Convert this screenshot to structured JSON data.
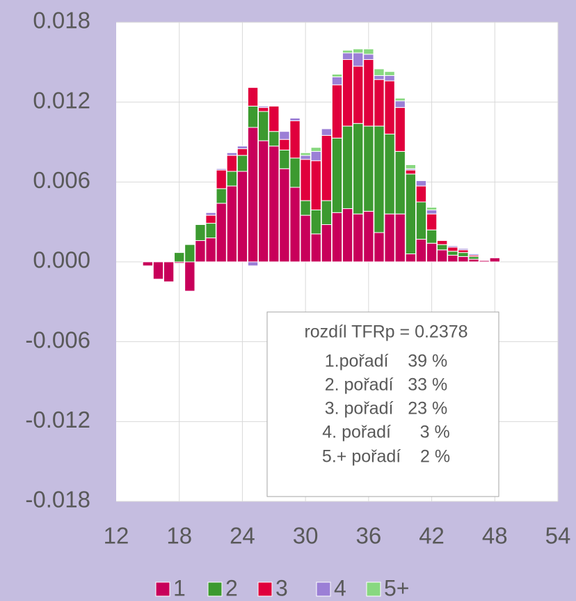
{
  "chart_data": {
    "type": "bar",
    "stacked": true,
    "x": [
      15,
      16,
      17,
      18,
      19,
      20,
      21,
      22,
      23,
      24,
      25,
      26,
      27,
      28,
      29,
      30,
      31,
      32,
      33,
      34,
      35,
      36,
      37,
      38,
      39,
      40,
      41,
      42,
      43,
      44,
      45,
      46,
      47,
      48
    ],
    "series": [
      {
        "name": "1",
        "color": "#c8005a",
        "values": [
          -0.0003,
          -0.0013,
          -0.0015,
          -0.0001,
          -0.0022,
          0.0016,
          0.0018,
          0.0044,
          0.0057,
          0.0068,
          0.0101,
          0.0091,
          0.0087,
          0.007,
          0.0056,
          0.0035,
          0.0021,
          0.0028,
          0.0037,
          0.004,
          0.0036,
          0.0038,
          0.0022,
          0.0036,
          0.0036,
          0.0006,
          0.0017,
          0.0014,
          0.0009,
          0.0005,
          0.0004,
          0.0002,
          0.0001,
          0.0003
        ]
      },
      {
        "name": "2",
        "color": "#3c9a30",
        "values": [
          0,
          0,
          0,
          0.0007,
          0.0013,
          0.0012,
          0.0011,
          0.0011,
          0.0011,
          0.0012,
          0.0016,
          0.0022,
          0.0011,
          0.0014,
          0.0022,
          0.0011,
          0.0018,
          0.0018,
          0.0056,
          0.0062,
          0.0068,
          0.0064,
          0.008,
          0.006,
          0.0047,
          0.006,
          0.0028,
          0.001,
          0.0004,
          0.0003,
          0.0003,
          0.0002,
          0,
          0
        ]
      },
      {
        "name": "3",
        "color": "#e0003c",
        "values": [
          0,
          0,
          0,
          0,
          0,
          0,
          0.0006,
          0.0014,
          0.0012,
          0.0005,
          0.0014,
          0.0003,
          0.0019,
          0.0008,
          0.0028,
          0.0031,
          0.0037,
          0.0049,
          0.004,
          0.005,
          0.0043,
          0.005,
          0.0035,
          0.004,
          0.0033,
          0.0003,
          0.0012,
          0.0012,
          0.0003,
          0.0003,
          0.0002,
          0.0001,
          0,
          0
        ]
      },
      {
        "name": "4",
        "color": "#9b7fd6",
        "values": [
          0,
          0,
          0,
          0,
          0,
          0,
          0.0002,
          0.0001,
          0.0002,
          0.0002,
          -0.0003,
          0.0001,
          0,
          0.0006,
          0.0002,
          0.0003,
          0.0007,
          0.0005,
          0.0006,
          0.0005,
          0.001,
          0.0004,
          0.0003,
          0.0004,
          0.0005,
          0.0001,
          0.0004,
          0.0003,
          0,
          0.0001,
          0.0001,
          0.0001,
          0,
          0
        ]
      },
      {
        "name": "5+",
        "color": "#88d880",
        "values": [
          0,
          0,
          0,
          0,
          0,
          0,
          0,
          0,
          0,
          0,
          0,
          0,
          0,
          0,
          0,
          0.0002,
          0.0003,
          0,
          0.0002,
          0.0002,
          0.0003,
          0.0004,
          0.0005,
          0.0003,
          0.0002,
          0.0003,
          0,
          0.0002,
          0,
          0,
          0,
          0,
          0,
          0
        ]
      }
    ],
    "xlim": [
      12,
      54
    ],
    "xticks": [
      12,
      18,
      24,
      30,
      36,
      42,
      48,
      54
    ],
    "ylim": [
      -0.018,
      0.018
    ],
    "yticks": [
      -0.018,
      -0.012,
      -0.006,
      {
        "value": 0,
        "label": "0.000"
      },
      0.006,
      0.012,
      0.018
    ],
    "grid": true,
    "annotation": [
      "rozdíl TFRp = 0.2378",
      "1.pořadí    39 %",
      "2. pořadí   33 %",
      "3. pořadí   23 %",
      "4. pořadí      3 %",
      "5.+ pořadí    2 %"
    ]
  }
}
